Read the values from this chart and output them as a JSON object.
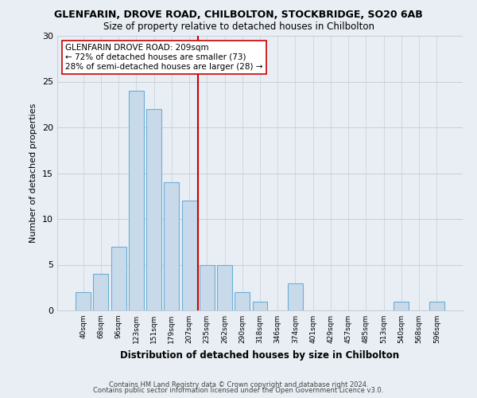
{
  "title": "GLENFARIN, DROVE ROAD, CHILBOLTON, STOCKBRIDGE, SO20 6AB",
  "subtitle": "Size of property relative to detached houses in Chilbolton",
  "xlabel": "Distribution of detached houses by size in Chilbolton",
  "ylabel": "Number of detached properties",
  "bin_labels": [
    "40sqm",
    "68sqm",
    "96sqm",
    "123sqm",
    "151sqm",
    "179sqm",
    "207sqm",
    "235sqm",
    "262sqm",
    "290sqm",
    "318sqm",
    "346sqm",
    "374sqm",
    "401sqm",
    "429sqm",
    "457sqm",
    "485sqm",
    "513sqm",
    "540sqm",
    "568sqm",
    "596sqm"
  ],
  "bar_values": [
    2,
    4,
    7,
    24,
    22,
    14,
    12,
    5,
    5,
    2,
    1,
    0,
    3,
    0,
    0,
    0,
    0,
    0,
    1,
    0,
    1
  ],
  "bar_color": "#c8daea",
  "bar_edge_color": "#6baed6",
  "vline_x": 6.5,
  "vline_color": "#cc0000",
  "annotation_title": "GLENFARIN DROVE ROAD: 209sqm",
  "annotation_line1": "← 72% of detached houses are smaller (73)",
  "annotation_line2": "28% of semi-detached houses are larger (28) →",
  "ylim": [
    0,
    30
  ],
  "yticks": [
    0,
    5,
    10,
    15,
    20,
    25,
    30
  ],
  "footer1": "Contains HM Land Registry data © Crown copyright and database right 2024.",
  "footer2": "Contains public sector information licensed under the Open Government Licence v3.0.",
  "bg_color": "#e8eef4",
  "plot_bg_color": "#e8eef4",
  "grid_color": "#c5cfd8"
}
